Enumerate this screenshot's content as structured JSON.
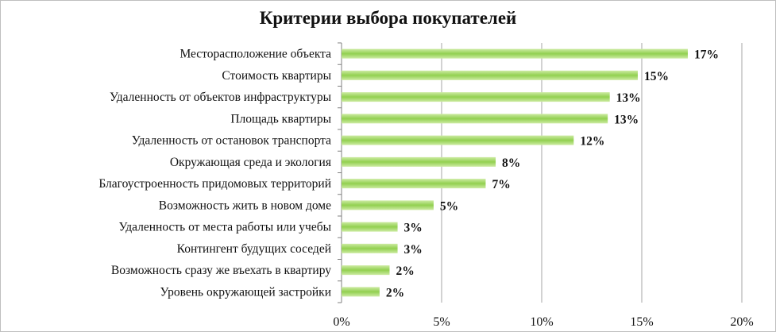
{
  "chart_data": {
    "type": "bar",
    "orientation": "horizontal",
    "title": "Критерии выбора покупателей",
    "categories": [
      "Месторасположение объекта",
      "Стоимость квартиры",
      "Удаленность от объектов инфраструктуры",
      "Площадь квартиры",
      "Удаленность  от остановок  транспорта",
      "Окружающая среда и экология",
      "Благоустроенность придомовых территорий",
      "Возможность жить в новом доме",
      "Удаленность  от места работы или учебы",
      "Контингент будущих соседей",
      "Возможность сразу же въехать в квартиру",
      "Уровень окружающей застройки"
    ],
    "values": [
      17.3,
      14.8,
      13.4,
      13.3,
      11.6,
      7.7,
      7.2,
      4.6,
      2.8,
      2.8,
      2.4,
      1.9
    ],
    "data_labels": [
      "17%",
      "15%",
      "13%",
      "13%",
      "12%",
      "8%",
      "7%",
      "5%",
      "3%",
      "3%",
      "2%",
      "2%"
    ],
    "xlim": [
      0,
      20
    ],
    "xticks": [
      0,
      5,
      10,
      15,
      20
    ],
    "xtick_labels": [
      "0%",
      "5%",
      "10%",
      "15%",
      "20%"
    ],
    "grid": "vertical",
    "colors": {
      "bar": "#92d050",
      "bar_light": "#cdeba3",
      "grid": "#a6a6a6",
      "axis": "#808080",
      "text": "#111111"
    }
  }
}
